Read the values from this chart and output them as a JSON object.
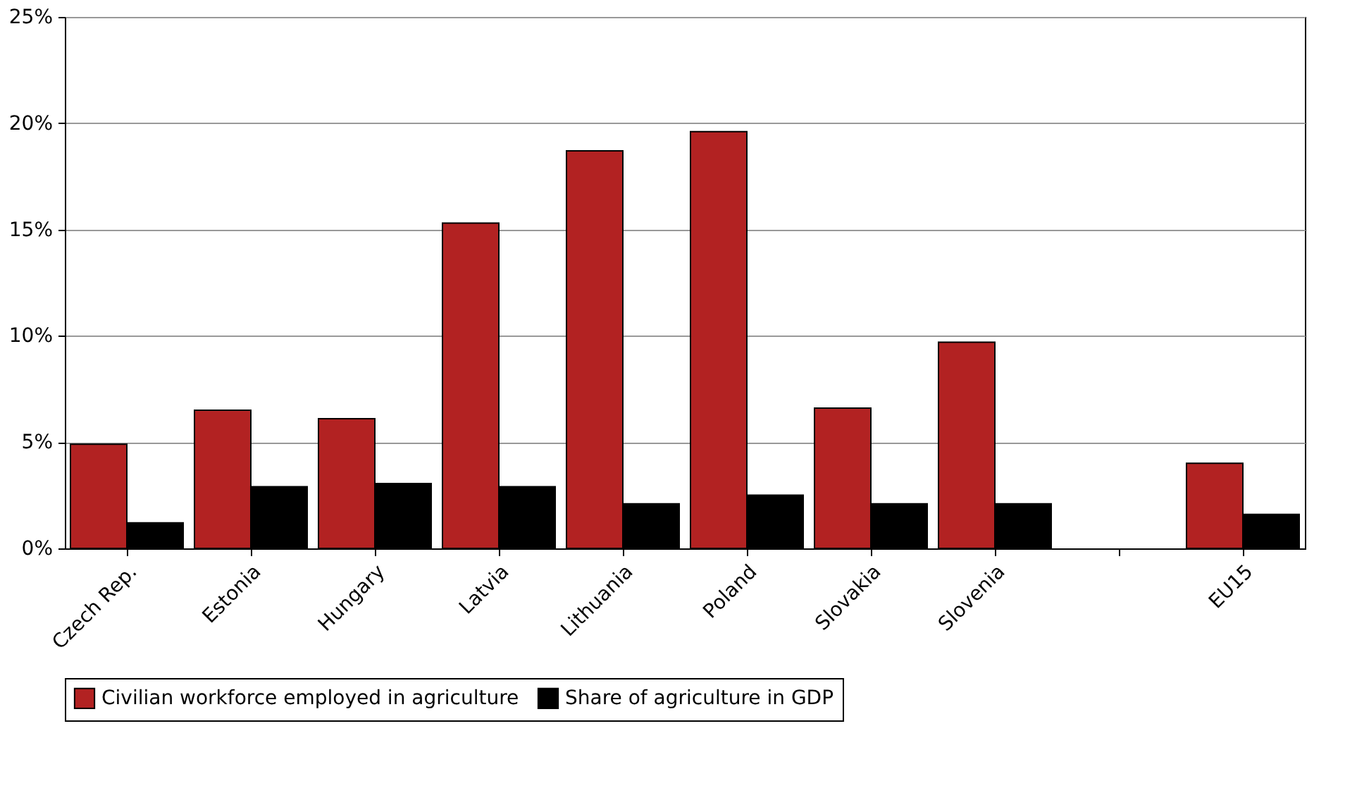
{
  "chart_data": {
    "type": "bar",
    "categories": [
      "Czech Rep.",
      "Estonia",
      "Hungary",
      "Latvia",
      "Lithuania",
      "Poland",
      "Slovakia",
      "Slovenia",
      null,
      "EU15"
    ],
    "series": [
      {
        "name": "Civilian workforce employed in agriculture",
        "color": "#b22222",
        "values": [
          4.9,
          6.5,
          6.1,
          15.3,
          18.7,
          19.6,
          6.6,
          9.7,
          null,
          4.0
        ]
      },
      {
        "name": "Share of agriculture in GDP",
        "color": "#000000",
        "values": [
          1.2,
          2.9,
          3.05,
          2.9,
          2.1,
          2.5,
          2.1,
          2.1,
          null,
          1.6
        ]
      }
    ],
    "ylim": [
      0,
      25
    ],
    "yticks": [
      {
        "value": 0,
        "label": "0%"
      },
      {
        "value": 5,
        "label": "5%"
      },
      {
        "value": 10,
        "label": "10%"
      },
      {
        "value": 15,
        "label": "15%"
      },
      {
        "value": 20,
        "label": "20%"
      },
      {
        "value": 25,
        "label": "25%"
      }
    ],
    "grid": "y",
    "legend": "bottom"
  }
}
